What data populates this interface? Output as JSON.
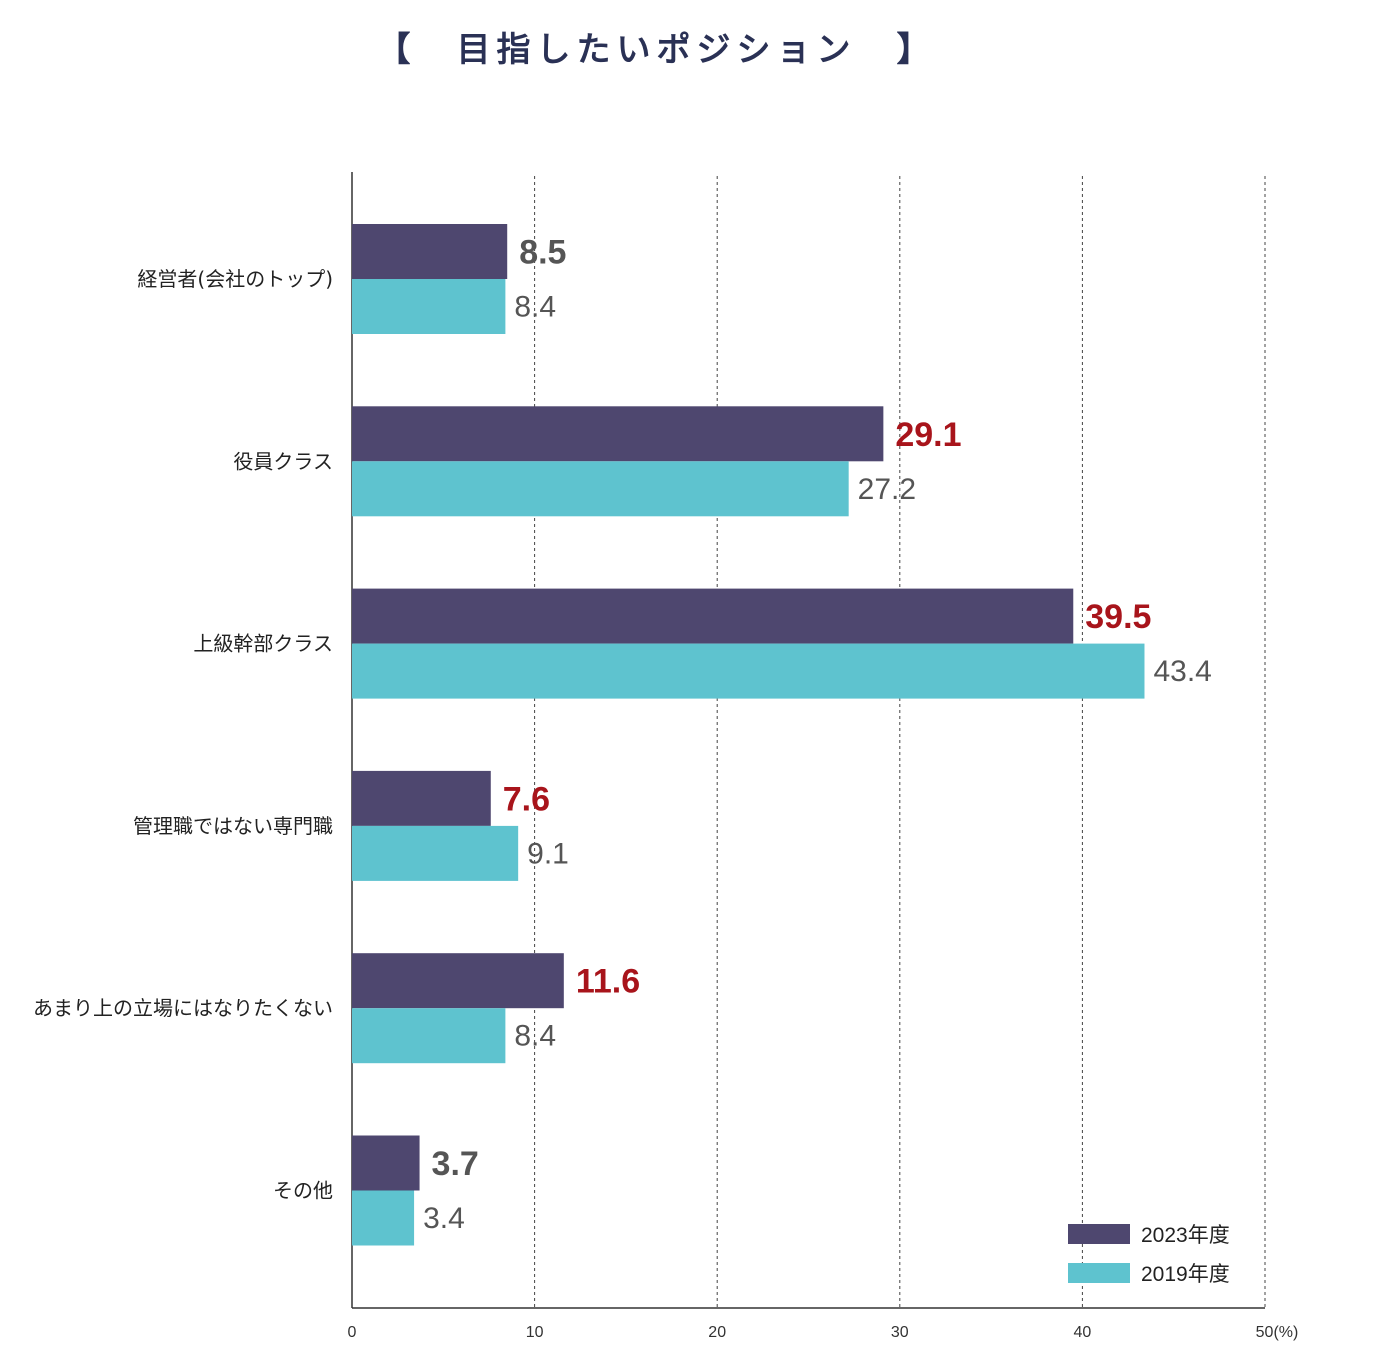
{
  "chart_data": {
    "type": "bar",
    "orientation": "horizontal",
    "title": "【　目指したいポジション　】",
    "categories": [
      "経営者(会社のトップ)",
      "役員クラス",
      "上級幹部クラス",
      "管理職ではない専門職",
      "あまり上の立場にはなりたくない",
      "その他"
    ],
    "series": [
      {
        "name": "2023年度",
        "color": "#4e476f",
        "values": [
          8.5,
          29.1,
          39.5,
          7.6,
          11.6,
          3.7
        ],
        "label_colors": [
          "#555555",
          "#a8141b",
          "#a8141b",
          "#a8141b",
          "#a8141b",
          "#555555"
        ]
      },
      {
        "name": "2019年度",
        "color": "#5ec3cf",
        "values": [
          8.4,
          27.2,
          43.4,
          9.1,
          8.4,
          3.4
        ]
      }
    ],
    "x_ticks": [
      "0",
      "10",
      "20",
      "30",
      "40",
      "50(%)"
    ],
    "xlim": [
      0,
      50
    ],
    "grid": "vertical dotted",
    "legend_position": "bottom-right"
  }
}
